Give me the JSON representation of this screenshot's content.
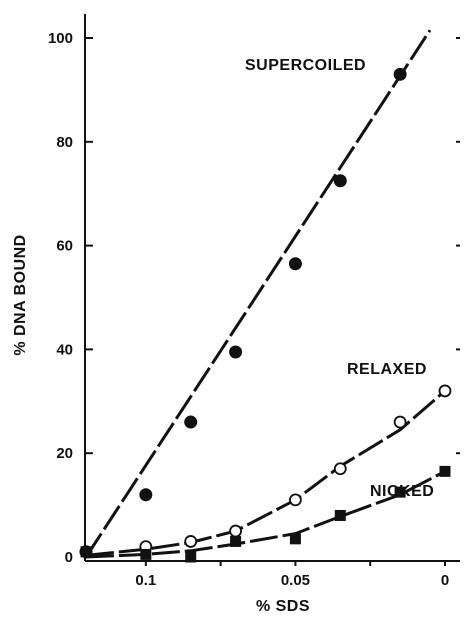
{
  "chart_data": {
    "type": "line",
    "xlabel": "% SDS",
    "ylabel": "% DNA BOUND",
    "xlim": [
      0.12,
      0
    ],
    "ylim": [
      0,
      105
    ],
    "x_ticks": [
      {
        "value": 0.1,
        "label": "0.1"
      },
      {
        "value": 0.05,
        "label": "0.05"
      },
      {
        "value": 0,
        "label": "0"
      }
    ],
    "y_ticks": [
      {
        "value": 0,
        "label": "0"
      },
      {
        "value": 20,
        "label": "20"
      },
      {
        "value": 40,
        "label": "40"
      },
      {
        "value": 60,
        "label": "60"
      },
      {
        "value": 80,
        "label": "80"
      },
      {
        "value": 100,
        "label": "100"
      }
    ],
    "series": [
      {
        "name": "SUPERCOILED",
        "marker": "filled-circle",
        "x": [
          0.12,
          0.1,
          0.085,
          0.07,
          0.05,
          0.035,
          0.015
        ],
        "y": [
          1,
          12,
          26,
          39.5,
          56.5,
          72.5,
          93
        ],
        "fit": {
          "x": [
            0.12,
            0.005
          ],
          "y": [
            0,
            101.5
          ]
        }
      },
      {
        "name": "RELAXED",
        "marker": "open-circle",
        "x": [
          0.12,
          0.1,
          0.085,
          0.07,
          0.05,
          0.035,
          0.015,
          0
        ],
        "y": [
          1,
          2,
          3,
          5,
          11,
          17,
          26,
          32
        ],
        "fit": {
          "x": [
            0.12,
            0.1,
            0.085,
            0.07,
            0.05,
            0.035,
            0.015,
            0
          ],
          "y": [
            0.3,
            1.5,
            2.8,
            5,
            11,
            17.5,
            24.5,
            32
          ]
        }
      },
      {
        "name": "NICKED",
        "marker": "filled-square",
        "x": [
          0.12,
          0.1,
          0.085,
          0.07,
          0.05,
          0.035,
          0.015,
          0
        ],
        "y": [
          1,
          0.5,
          0,
          3,
          3.5,
          8,
          12.5,
          16.5
        ],
        "fit": {
          "x": [
            0.12,
            0.1,
            0.085,
            0.07,
            0.05,
            0.035,
            0.015,
            0
          ],
          "y": [
            0,
            0.5,
            1.2,
            2.5,
            4.5,
            7.8,
            12,
            16.5
          ]
        }
      }
    ],
    "grid": false
  }
}
